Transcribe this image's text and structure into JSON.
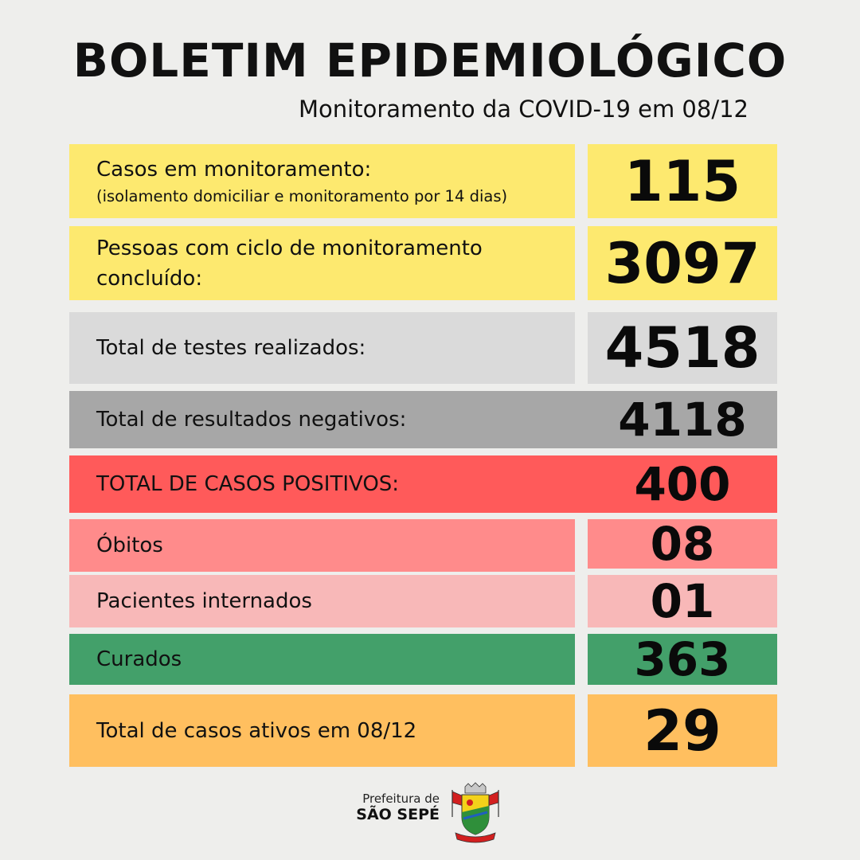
{
  "header": {
    "title": "BOLETIM EPIDEMIOLÓGICO",
    "subtitle": "Monitoramento da COVID-19 em 08/12"
  },
  "rows": [
    {
      "label": "Casos em monitoramento:",
      "sublabel": "(isolamento domiciliar e monitoramento por 14 dias)",
      "value": "115",
      "color": "#fde96f"
    },
    {
      "label_line1": "Pessoas com ciclo de monitoramento",
      "label_line2": "concluído:",
      "value": "3097",
      "color": "#fde96f"
    },
    {
      "label": "Total de testes realizados:",
      "value": "4518",
      "color": "#dadada"
    },
    {
      "label": "Total de resultados negativos:",
      "value": "4118",
      "color": "#a7a7a7"
    },
    {
      "label": "TOTAL DE CASOS POSITIVOS:",
      "value": "400",
      "color": "#ff5a5a"
    },
    {
      "label": "Óbitos",
      "value": "08",
      "color": "#ff8b8b"
    },
    {
      "label": "Pacientes internados",
      "value": "01",
      "color": "#f8b8b8"
    },
    {
      "label": "Curados",
      "value": "363",
      "color": "#43a06a"
    },
    {
      "label": "Total de casos ativos em 08/12",
      "value": "29",
      "color": "#ffbf5f"
    }
  ],
  "footer": {
    "prefix": "Prefeitura de",
    "city": "SÃO SEPÉ",
    "crest_icon": "sao-sepe-coat-of-arms-icon"
  }
}
